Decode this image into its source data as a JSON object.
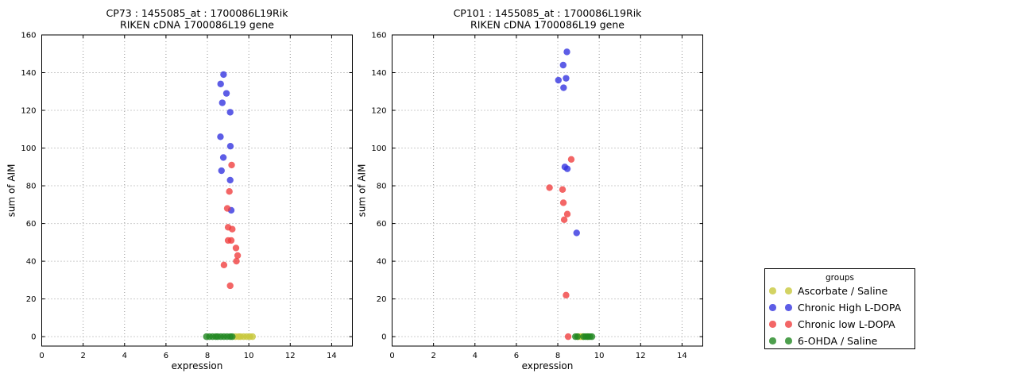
{
  "legend": {
    "title": "groups",
    "entries": [
      {
        "label": "Ascorbate / Saline",
        "color": "#c8c83c"
      },
      {
        "label": "Chronic High L-DOPA",
        "color": "#3535e0"
      },
      {
        "label": "Chronic low L-DOPA",
        "color": "#f04040"
      },
      {
        "label": "6-OHDA / Saline",
        "color": "#218721"
      }
    ]
  },
  "chart_data": [
    {
      "type": "scatter",
      "title": "CP73 : 1455085_at : 1700086L19Rik",
      "subtitle": "RIKEN cDNA 1700086L19 gene",
      "xlabel": "expression",
      "ylabel": "sum of AIM",
      "xlim": [
        0,
        15
      ],
      "ylim": [
        -5,
        160
      ],
      "xticks": [
        0,
        2,
        4,
        6,
        8,
        10,
        12,
        14
      ],
      "yticks": [
        0,
        20,
        40,
        60,
        80,
        100,
        120,
        140,
        160
      ],
      "grid": true,
      "series": [
        {
          "name": "Ascorbate / Saline",
          "color": "#c8c83c",
          "points": [
            [
              9.35,
              0
            ],
            [
              9.5,
              0
            ],
            [
              9.6,
              0
            ],
            [
              9.75,
              0
            ],
            [
              9.9,
              0
            ],
            [
              10.05,
              0
            ],
            [
              10.18,
              0
            ]
          ]
        },
        {
          "name": "Chronic High L-DOPA",
          "color": "#3535e0",
          "points": [
            [
              8.78,
              139
            ],
            [
              8.64,
              134
            ],
            [
              8.92,
              129
            ],
            [
              8.72,
              124
            ],
            [
              9.1,
              119
            ],
            [
              8.63,
              106
            ],
            [
              9.11,
              101
            ],
            [
              8.77,
              95
            ],
            [
              8.68,
              88
            ],
            [
              9.1,
              83
            ],
            [
              9.15,
              67
            ]
          ]
        },
        {
          "name": "Chronic low L-DOPA",
          "color": "#f04040",
          "points": [
            [
              9.17,
              91
            ],
            [
              9.06,
              77
            ],
            [
              8.96,
              68
            ],
            [
              9.0,
              58
            ],
            [
              9.2,
              57
            ],
            [
              9.0,
              51
            ],
            [
              9.15,
              51
            ],
            [
              9.38,
              47
            ],
            [
              9.46,
              43
            ],
            [
              9.4,
              40
            ],
            [
              8.8,
              38
            ],
            [
              9.1,
              27
            ]
          ]
        },
        {
          "name": "6-OHDA / Saline",
          "color": "#218721",
          "points": [
            [
              7.95,
              0
            ],
            [
              8.1,
              0
            ],
            [
              8.25,
              0
            ],
            [
              8.4,
              0
            ],
            [
              8.5,
              0
            ],
            [
              8.65,
              0
            ],
            [
              8.8,
              0
            ],
            [
              8.95,
              0
            ],
            [
              9.1,
              0
            ],
            [
              9.2,
              0
            ]
          ]
        }
      ]
    },
    {
      "type": "scatter",
      "title": "CP101 : 1455085_at : 1700086L19Rik",
      "subtitle": "RIKEN cDNA 1700086L19 gene",
      "xlabel": "expression",
      "ylabel": "sum of AIM",
      "xlim": [
        0,
        15
      ],
      "ylim": [
        -5,
        160
      ],
      "xticks": [
        0,
        2,
        4,
        6,
        8,
        10,
        12,
        14
      ],
      "yticks": [
        0,
        20,
        40,
        60,
        80,
        100,
        120,
        140,
        160
      ],
      "grid": true,
      "series": [
        {
          "name": "Ascorbate / Saline",
          "color": "#c8c83c",
          "points": [
            [
              9.0,
              0
            ],
            [
              9.1,
              0
            ],
            [
              9.2,
              0
            ],
            [
              9.45,
              0
            ]
          ]
        },
        {
          "name": "Chronic High L-DOPA",
          "color": "#3535e0",
          "points": [
            [
              8.44,
              151
            ],
            [
              8.26,
              144
            ],
            [
              8.4,
              137
            ],
            [
              8.03,
              136
            ],
            [
              8.28,
              132
            ],
            [
              8.34,
              90
            ],
            [
              8.46,
              89
            ],
            [
              8.91,
              55
            ]
          ]
        },
        {
          "name": "Chronic low L-DOPA",
          "color": "#f04040",
          "points": [
            [
              8.65,
              94
            ],
            [
              7.6,
              79
            ],
            [
              8.23,
              78
            ],
            [
              8.27,
              71
            ],
            [
              8.46,
              65
            ],
            [
              8.31,
              62
            ],
            [
              8.4,
              22
            ],
            [
              8.5,
              0
            ]
          ]
        },
        {
          "name": "6-OHDA / Saline",
          "color": "#218721",
          "points": [
            [
              8.85,
              0
            ],
            [
              8.95,
              0
            ],
            [
              9.25,
              0
            ],
            [
              9.35,
              0
            ],
            [
              9.45,
              0
            ],
            [
              9.55,
              0
            ],
            [
              9.65,
              0
            ]
          ]
        }
      ]
    }
  ]
}
